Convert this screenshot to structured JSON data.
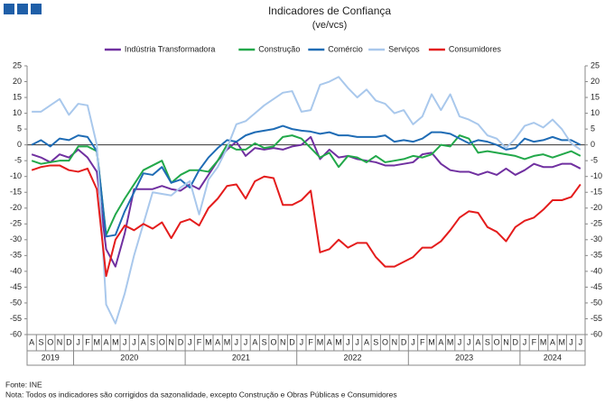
{
  "chart_data": {
    "type": "line",
    "title": "Indicadores de Confiança",
    "subtitle": "(ve/vcs)",
    "source": "Fonte: INE",
    "note": "Nota: Todos os indicadores são corrigidos da sazonalidade, excepto Construção e Obras Públicas e Consumidores",
    "categories": [
      "A",
      "S",
      "O",
      "N",
      "D",
      "J",
      "F",
      "M",
      "A",
      "M",
      "J",
      "J",
      "A",
      "S",
      "O",
      "N",
      "D",
      "J",
      "F",
      "M",
      "A",
      "M",
      "J",
      "J",
      "A",
      "S",
      "O",
      "N",
      "D",
      "J",
      "F",
      "M",
      "A",
      "M",
      "J",
      "J",
      "A",
      "S",
      "O",
      "N",
      "D",
      "J",
      "F",
      "M",
      "A",
      "M",
      "J",
      "J",
      "A",
      "S",
      "O",
      "N",
      "D",
      "J",
      "F",
      "M",
      "A",
      "M",
      "J",
      "J"
    ],
    "years": [
      "2019",
      "2020",
      "2021",
      "2022",
      "2023",
      "2024"
    ],
    "ylim": [
      -60,
      25
    ],
    "yticks": [
      -60,
      -55,
      -50,
      -45,
      -40,
      -35,
      -30,
      -25,
      -20,
      -15,
      -10,
      -5,
      0,
      5,
      10,
      15,
      20,
      25
    ],
    "grid": false,
    "legend": "top",
    "series": [
      {
        "name": "Indústria Transformadora",
        "color": "#7030a0",
        "values": [
          -3,
          -4,
          -5.5,
          -3,
          -4,
          -1.5,
          -4,
          -8.5,
          -33,
          -38.5,
          -28,
          -14,
          -14,
          -14,
          -13,
          -14,
          -14.5,
          -12.5,
          -14,
          -9.5,
          -5,
          -1.5,
          1,
          -3.5,
          -1,
          -1.5,
          -1,
          -1.5,
          -0.5,
          0,
          2.5,
          -4.5,
          -1.5,
          -4,
          -3.5,
          -4.5,
          -5,
          -5.5,
          -6.5,
          -6.5,
          -6,
          -5.5,
          -3,
          -2.5,
          -6,
          -8,
          -8.5,
          -8.5,
          -9.5,
          -8.5,
          -9.5,
          -7.5,
          -9.5,
          -8,
          -6,
          -7,
          -7,
          -6,
          -6,
          -7.5
        ]
      },
      {
        "name": "Construção",
        "color": "#22a84a",
        "values": [
          -5,
          -6,
          -5.5,
          -5,
          -5,
          -0.5,
          -0.5,
          -2,
          -28.5,
          -22,
          -17,
          -12.5,
          -8,
          -6.5,
          -5,
          -12,
          -9.5,
          -8,
          -8,
          -8.5,
          -5,
          0,
          -1.5,
          -1.5,
          0.5,
          -1,
          -0.5,
          2.5,
          3,
          2,
          -1,
          -4,
          -2.5,
          -7,
          -3.5,
          -4,
          -5.5,
          -3.5,
          -5.5,
          -5,
          -4.5,
          -3.5,
          -4,
          -3,
          0,
          -0.5,
          3,
          2,
          -2.5,
          -2,
          -2.5,
          -3,
          -3.5,
          -4.5,
          -3.5,
          -3,
          -4,
          -3,
          -2,
          -3.5
        ]
      },
      {
        "name": "Comércio",
        "color": "#1f6cb5",
        "values": [
          0,
          1.5,
          -0.5,
          2,
          1.5,
          3,
          2.5,
          -2,
          -29,
          -28.5,
          -21,
          -15,
          -9,
          -9.5,
          -7,
          -12,
          -11,
          -13.5,
          -8,
          -4,
          -1,
          1.5,
          1,
          3,
          4,
          4.5,
          5,
          6,
          5,
          4.5,
          4.2,
          3.5,
          4,
          3,
          3,
          2.5,
          2.5,
          2.5,
          3,
          1,
          1.5,
          1,
          2,
          4,
          4,
          3.5,
          2,
          0.5,
          1.5,
          1,
          0,
          -1.5,
          -1,
          2,
          1,
          1.5,
          2.5,
          1.5,
          1.5,
          0
        ]
      },
      {
        "name": "Serviços",
        "color": "#a9c8ec",
        "values": [
          10.5,
          10.5,
          12.5,
          14.5,
          9.5,
          13,
          12.5,
          0,
          -50.5,
          -56.5,
          -47,
          -35,
          -25,
          -15,
          -15.5,
          -16,
          -13.5,
          -11.5,
          -22,
          -11,
          -7,
          -1,
          6.5,
          7.5,
          10,
          12.5,
          14.5,
          16.5,
          17,
          10.5,
          11,
          19,
          20,
          21.5,
          18,
          15,
          17.5,
          14,
          13,
          10,
          11,
          6.5,
          9,
          16,
          11,
          16,
          9,
          8,
          6.5,
          3,
          2,
          -1,
          2,
          6,
          7,
          5.5,
          8,
          5,
          0.5,
          -1.5
        ]
      },
      {
        "name": "Consumidores",
        "color": "#e41c1c",
        "values": [
          -8,
          -7,
          -6.5,
          -6.5,
          -8,
          -8.5,
          -7.5,
          -14,
          -41.5,
          -30,
          -25.5,
          -27,
          -25,
          -26.5,
          -24.5,
          -29.5,
          -24.5,
          -23.5,
          -25.5,
          -20,
          -17,
          -13,
          -12.5,
          -17,
          -11.5,
          -10,
          -10.5,
          -19,
          -19,
          -17.5,
          -14.5,
          -34,
          -33,
          -30,
          -32.5,
          -31,
          -31,
          -35.5,
          -38.5,
          -38.5,
          -37,
          -35.5,
          -32.5,
          -32.5,
          -30.5,
          -27,
          -23,
          -21,
          -21.5,
          -26,
          -27.5,
          -30.5,
          -26,
          -24,
          -23,
          -20.5,
          -17.5,
          -17.5,
          -16.5,
          -12.5
        ]
      }
    ]
  }
}
